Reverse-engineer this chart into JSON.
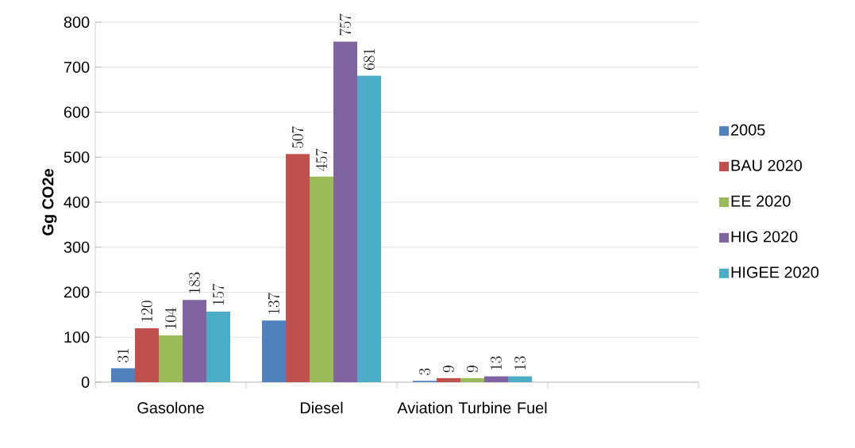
{
  "chart_data": {
    "type": "bar",
    "ylabel": "Gg CO2e",
    "categories": [
      "Gasolone",
      "Diesel",
      "Aviation Turbine Fuel",
      null
    ],
    "series": [
      {
        "name": "2005",
        "color": "#4f81bd",
        "values": [
          31,
          137,
          3,
          null
        ]
      },
      {
        "name": "BAU 2020",
        "color": "#c0504d",
        "values": [
          120,
          507,
          9,
          null
        ]
      },
      {
        "name": "EE 2020",
        "color": "#9bbb59",
        "values": [
          104,
          457,
          9,
          null
        ]
      },
      {
        "name": "HIG 2020",
        "color": "#8064a2",
        "values": [
          183,
          757,
          13,
          null
        ]
      },
      {
        "name": "HIGEE 2020",
        "color": "#4bacc6",
        "values": [
          157,
          681,
          13,
          null
        ]
      }
    ],
    "ylim": [
      0,
      800
    ],
    "yticks": [
      0,
      100,
      200,
      300,
      400,
      500,
      600,
      700,
      800
    ],
    "grid": "y",
    "legend": "right",
    "data_labels": true
  }
}
